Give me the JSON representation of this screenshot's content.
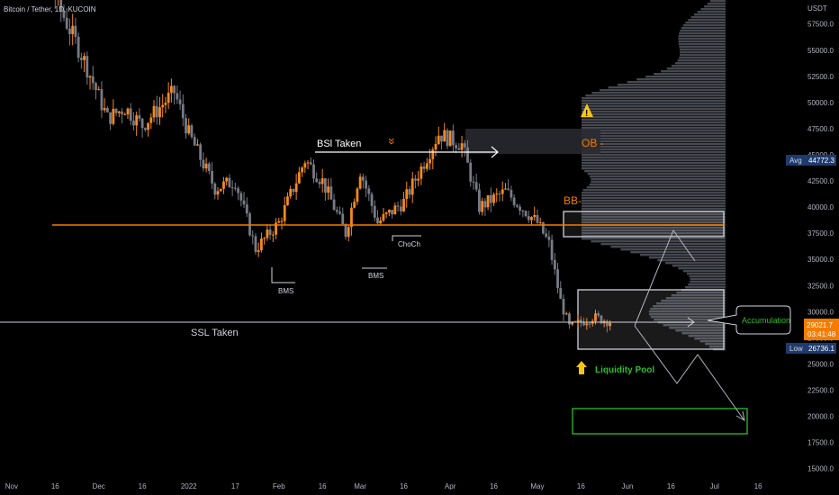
{
  "header": {
    "symbol_title": "Bitcoin / Tether, 1D, KUCOIN"
  },
  "chart_data": {
    "type": "candlestick",
    "quote_currency": "USDT",
    "y_axis": {
      "unit": "USDT",
      "ticks": [
        15000,
        17500,
        20000,
        22500,
        25000,
        27500,
        30000,
        32500,
        35000,
        37500,
        40000,
        42500,
        45000,
        47500,
        50000,
        52500,
        55000,
        57500
      ],
      "tick_labels": [
        "15000.0",
        "17500.0",
        "20000.0",
        "22500.0",
        "25000.0",
        "27500.0",
        "30000.0",
        "32500.0",
        "35000.0",
        "37500.0",
        "40000.0",
        "42500.0",
        "45000.0",
        "47500.0",
        "50000.0",
        "52500.0",
        "55000.0",
        "57500.0"
      ],
      "range": [
        14200,
        59800
      ]
    },
    "x_axis": {
      "range": [
        "2021-10-28",
        "2022-07-24"
      ],
      "ticks": [
        {
          "date": "2021-11-01",
          "label": "Nov"
        },
        {
          "date": "2021-11-16",
          "label": "16"
        },
        {
          "date": "2021-12-01",
          "label": "Dec"
        },
        {
          "date": "2021-12-16",
          "label": "16"
        },
        {
          "date": "2022-01-01",
          "label": "2022"
        },
        {
          "date": "2022-01-17",
          "label": "17"
        },
        {
          "date": "2022-02-01",
          "label": "Feb"
        },
        {
          "date": "2022-02-16",
          "label": "16"
        },
        {
          "date": "2022-03-01",
          "label": "Mar"
        },
        {
          "date": "2022-03-16",
          "label": "16"
        },
        {
          "date": "2022-04-01",
          "label": "Apr"
        },
        {
          "date": "2022-04-16",
          "label": "16"
        },
        {
          "date": "2022-05-01",
          "label": "May"
        },
        {
          "date": "2022-05-16",
          "label": "16"
        },
        {
          "date": "2022-06-01",
          "label": "Jun"
        },
        {
          "date": "2022-06-16",
          "label": "16"
        },
        {
          "date": "2022-07-01",
          "label": "Jul"
        },
        {
          "date": "2022-07-16",
          "label": "16"
        }
      ]
    },
    "price_path": [
      {
        "date": "2021-10-28",
        "price": 61000
      },
      {
        "date": "2021-11-10",
        "price": 68000
      },
      {
        "date": "2021-11-16",
        "price": 60000
      },
      {
        "date": "2021-11-26",
        "price": 54000
      },
      {
        "date": "2021-12-04",
        "price": 48500
      },
      {
        "date": "2021-12-10",
        "price": 49500
      },
      {
        "date": "2021-12-16",
        "price": 47800
      },
      {
        "date": "2021-12-27",
        "price": 51000
      },
      {
        "date": "2022-01-01",
        "price": 47000
      },
      {
        "date": "2022-01-10",
        "price": 41800
      },
      {
        "date": "2022-01-17",
        "price": 42500
      },
      {
        "date": "2022-01-24",
        "price": 36000
      },
      {
        "date": "2022-02-01",
        "price": 38500
      },
      {
        "date": "2022-02-10",
        "price": 44500
      },
      {
        "date": "2022-02-16",
        "price": 42500
      },
      {
        "date": "2022-02-24",
        "price": 37500
      },
      {
        "date": "2022-03-01",
        "price": 43500
      },
      {
        "date": "2022-03-07",
        "price": 38500
      },
      {
        "date": "2022-03-16",
        "price": 40500
      },
      {
        "date": "2022-03-28",
        "price": 47000
      },
      {
        "date": "2022-04-05",
        "price": 46000
      },
      {
        "date": "2022-04-11",
        "price": 40000
      },
      {
        "date": "2022-04-20",
        "price": 41500
      },
      {
        "date": "2022-05-01",
        "price": 38500
      },
      {
        "date": "2022-05-05",
        "price": 36500
      },
      {
        "date": "2022-05-09",
        "price": 31000
      },
      {
        "date": "2022-05-12",
        "price": 28500
      },
      {
        "date": "2022-05-20",
        "price": 29500
      },
      {
        "date": "2022-05-27",
        "price": 29000
      }
    ],
    "markers": {
      "avg": {
        "label": "Avg",
        "value": "44772.3"
      },
      "low": {
        "label": "Low",
        "value": "26736.1"
      },
      "last": {
        "value": "29021.7",
        "countdown": "03:41:48",
        "color": "#f57c00"
      }
    },
    "colors": {
      "up": "#f5891f",
      "down": "#787b86",
      "key_level": "#f57c00",
      "box_green": "#2ebd2e"
    }
  },
  "annotations": {
    "bsl_taken": "BSl Taken",
    "ssl_taken": "SSL Taken",
    "bms_1": "BMS",
    "bms_2": "BMS",
    "choch": "ChoCh",
    "ob": "OB -",
    "bb": "BB-",
    "warning_symbol": "!",
    "double_chevron": "»",
    "accumulation": "Accumulation",
    "liquidity_pool": "Liquidity Pool"
  }
}
